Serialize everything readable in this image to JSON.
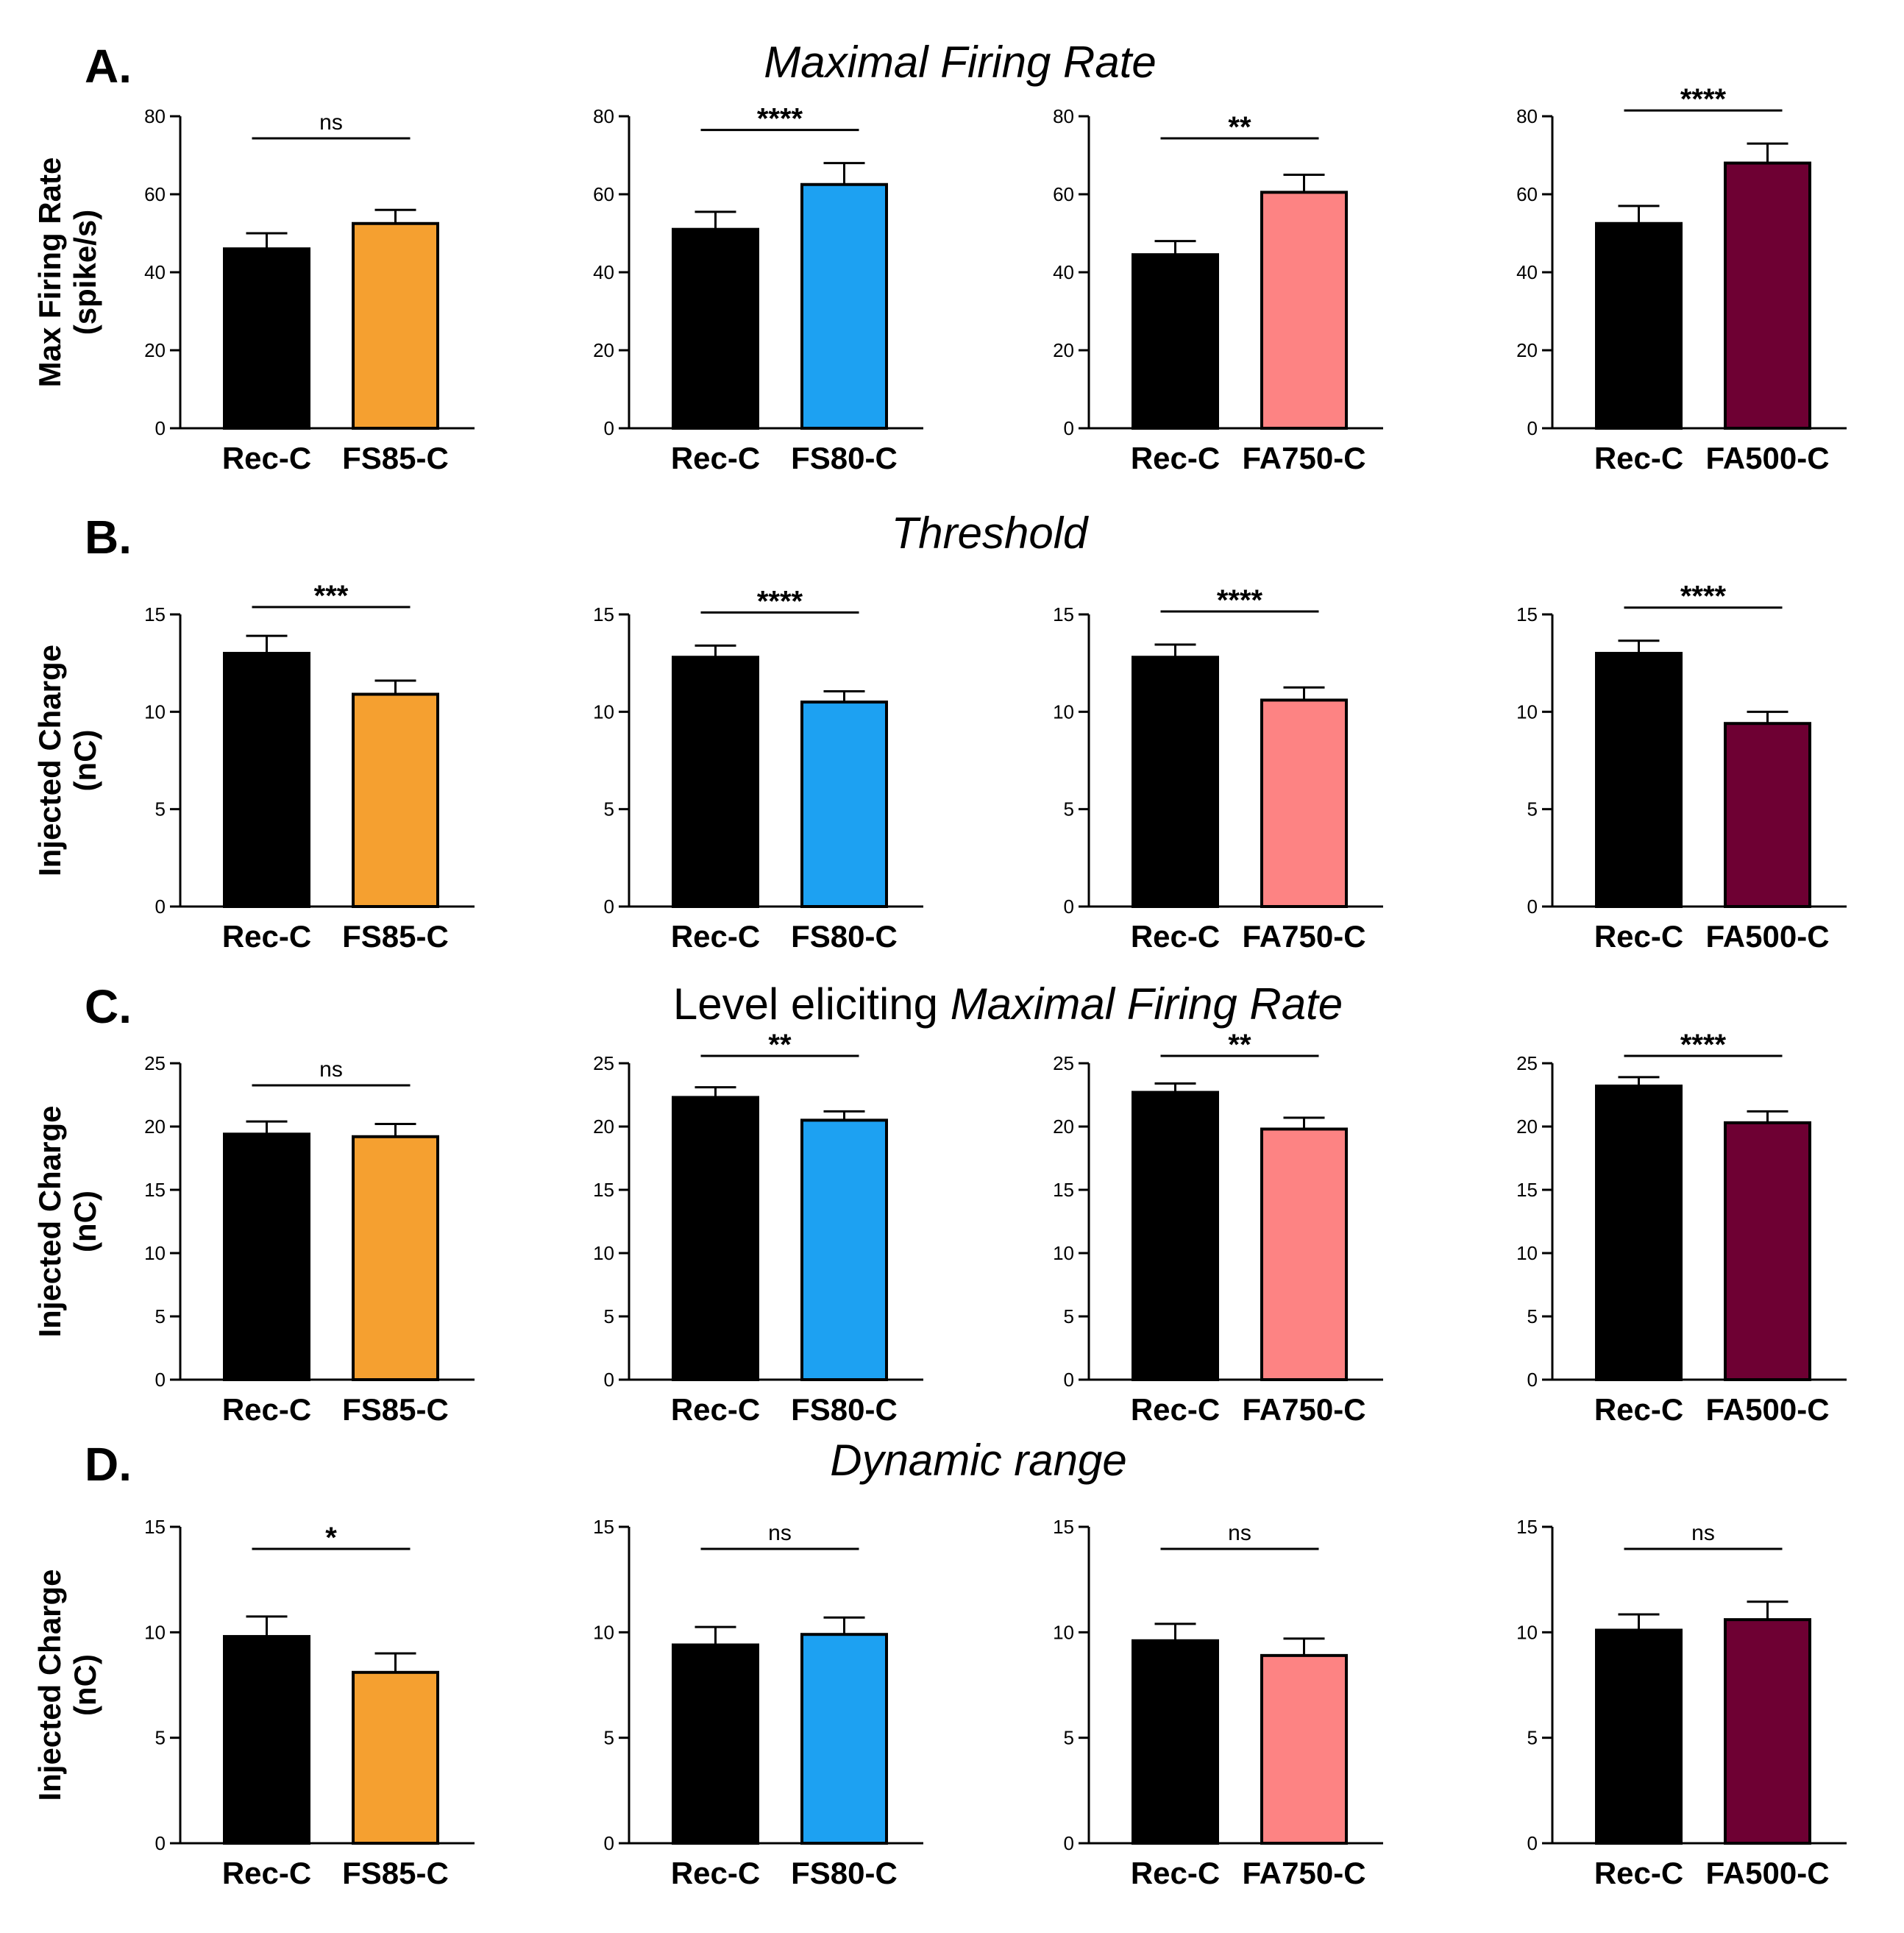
{
  "colors": {
    "Rec-C": "#000000",
    "FS85-C": "#F5A030",
    "FS80-C": "#1DA1F2",
    "FA750-C": "#FD8383",
    "FA500-C": "#6E0033"
  },
  "rows": [
    {
      "letter": "A.",
      "title_plain": "",
      "title_italic": "Maximal Firing Rate",
      "ylabel": [
        "Max Firing Rate",
        "(spike/s)"
      ]
    },
    {
      "letter": "B.",
      "title_plain": "",
      "title_italic": "Threshold",
      "ylabel": [
        "Injected Charge",
        "(nC)"
      ]
    },
    {
      "letter": "C.",
      "title_plain": "Level eliciting ",
      "title_italic": "Maximal Firing Rate",
      "ylabel": [
        "Injected Charge",
        "(nC)"
      ]
    },
    {
      "letter": "D.",
      "title_plain": "",
      "title_italic": "Dynamic range",
      "ylabel": [
        "Injected Charge",
        "(nC)"
      ]
    }
  ],
  "chart_data": [
    {
      "type": "bar",
      "row": 0,
      "col": 0,
      "categories": [
        "Rec-C",
        "FS85-C"
      ],
      "values": [
        46,
        52.5
      ],
      "errors": [
        4,
        3.5
      ],
      "ylim": [
        0,
        80
      ],
      "yticks": [
        0,
        20,
        40,
        60,
        80
      ],
      "significance": "ns"
    },
    {
      "type": "bar",
      "row": 0,
      "col": 1,
      "categories": [
        "Rec-C",
        "FS80-C"
      ],
      "values": [
        51,
        62.5
      ],
      "errors": [
        4.5,
        5.5
      ],
      "ylim": [
        0,
        80
      ],
      "yticks": [
        0,
        20,
        40,
        60,
        80
      ],
      "significance": "****"
    },
    {
      "type": "bar",
      "row": 0,
      "col": 2,
      "categories": [
        "Rec-C",
        "FA750-C"
      ],
      "values": [
        44.5,
        60.5
      ],
      "errors": [
        3.5,
        4.5
      ],
      "ylim": [
        0,
        80
      ],
      "yticks": [
        0,
        20,
        40,
        60,
        80
      ],
      "significance": "**"
    },
    {
      "type": "bar",
      "row": 0,
      "col": 3,
      "categories": [
        "Rec-C",
        "FA500-C"
      ],
      "values": [
        52.5,
        68
      ],
      "errors": [
        4.5,
        5
      ],
      "ylim": [
        0,
        80
      ],
      "yticks": [
        0,
        20,
        40,
        60,
        80
      ],
      "significance": "****"
    },
    {
      "type": "bar",
      "row": 1,
      "col": 0,
      "categories": [
        "Rec-C",
        "FS85-C"
      ],
      "values": [
        13.0,
        10.9
      ],
      "errors": [
        0.9,
        0.7
      ],
      "ylim": [
        0,
        15
      ],
      "yticks": [
        0,
        5,
        10,
        15
      ],
      "significance": "***"
    },
    {
      "type": "bar",
      "row": 1,
      "col": 1,
      "categories": [
        "Rec-C",
        "FS80-C"
      ],
      "values": [
        12.8,
        10.5
      ],
      "errors": [
        0.6,
        0.55
      ],
      "ylim": [
        0,
        15
      ],
      "yticks": [
        0,
        5,
        10,
        15
      ],
      "significance": "****"
    },
    {
      "type": "bar",
      "row": 1,
      "col": 2,
      "categories": [
        "Rec-C",
        "FA750-C"
      ],
      "values": [
        12.8,
        10.6
      ],
      "errors": [
        0.65,
        0.65
      ],
      "ylim": [
        0,
        15
      ],
      "yticks": [
        0,
        5,
        10,
        15
      ],
      "significance": "****"
    },
    {
      "type": "bar",
      "row": 1,
      "col": 3,
      "categories": [
        "Rec-C",
        "FA500-C"
      ],
      "values": [
        13.0,
        9.4
      ],
      "errors": [
        0.65,
        0.6
      ],
      "ylim": [
        0,
        15
      ],
      "yticks": [
        0,
        5,
        10,
        15
      ],
      "significance": "****"
    },
    {
      "type": "bar",
      "row": 2,
      "col": 0,
      "categories": [
        "Rec-C",
        "FS85-C"
      ],
      "values": [
        19.4,
        19.2
      ],
      "errors": [
        1.0,
        1.0
      ],
      "ylim": [
        0,
        25
      ],
      "yticks": [
        0,
        5,
        10,
        15,
        20,
        25
      ],
      "significance": "ns"
    },
    {
      "type": "bar",
      "row": 2,
      "col": 1,
      "categories": [
        "Rec-C",
        "FS80-C"
      ],
      "values": [
        22.3,
        20.5
      ],
      "errors": [
        0.8,
        0.7
      ],
      "ylim": [
        0,
        25
      ],
      "yticks": [
        0,
        5,
        10,
        15,
        20,
        25
      ],
      "significance": "**"
    },
    {
      "type": "bar",
      "row": 2,
      "col": 2,
      "categories": [
        "Rec-C",
        "FA750-C"
      ],
      "values": [
        22.7,
        19.8
      ],
      "errors": [
        0.7,
        0.9
      ],
      "ylim": [
        0,
        25
      ],
      "yticks": [
        0,
        5,
        10,
        15,
        20,
        25
      ],
      "significance": "**"
    },
    {
      "type": "bar",
      "row": 2,
      "col": 3,
      "categories": [
        "Rec-C",
        "FA500-C"
      ],
      "values": [
        23.2,
        20.3
      ],
      "errors": [
        0.7,
        0.9
      ],
      "ylim": [
        0,
        25
      ],
      "yticks": [
        0,
        5,
        10,
        15,
        20,
        25
      ],
      "significance": "****"
    },
    {
      "type": "bar",
      "row": 3,
      "col": 0,
      "categories": [
        "Rec-C",
        "FS85-C"
      ],
      "values": [
        9.8,
        8.1
      ],
      "errors": [
        0.95,
        0.9
      ],
      "ylim": [
        0,
        15
      ],
      "yticks": [
        0,
        5,
        10,
        15
      ],
      "significance": "*"
    },
    {
      "type": "bar",
      "row": 3,
      "col": 1,
      "categories": [
        "Rec-C",
        "FS80-C"
      ],
      "values": [
        9.4,
        9.9
      ],
      "errors": [
        0.85,
        0.8
      ],
      "ylim": [
        0,
        15
      ],
      "yticks": [
        0,
        5,
        10,
        15
      ],
      "significance": "ns"
    },
    {
      "type": "bar",
      "row": 3,
      "col": 2,
      "categories": [
        "Rec-C",
        "FA750-C"
      ],
      "values": [
        9.6,
        8.9
      ],
      "errors": [
        0.8,
        0.8
      ],
      "ylim": [
        0,
        15
      ],
      "yticks": [
        0,
        5,
        10,
        15
      ],
      "significance": "ns"
    },
    {
      "type": "bar",
      "row": 3,
      "col": 3,
      "categories": [
        "Rec-C",
        "FA500-C"
      ],
      "values": [
        10.1,
        10.6
      ],
      "errors": [
        0.75,
        0.85
      ],
      "ylim": [
        0,
        15
      ],
      "yticks": [
        0,
        5,
        10,
        15
      ],
      "significance": "ns"
    }
  ]
}
